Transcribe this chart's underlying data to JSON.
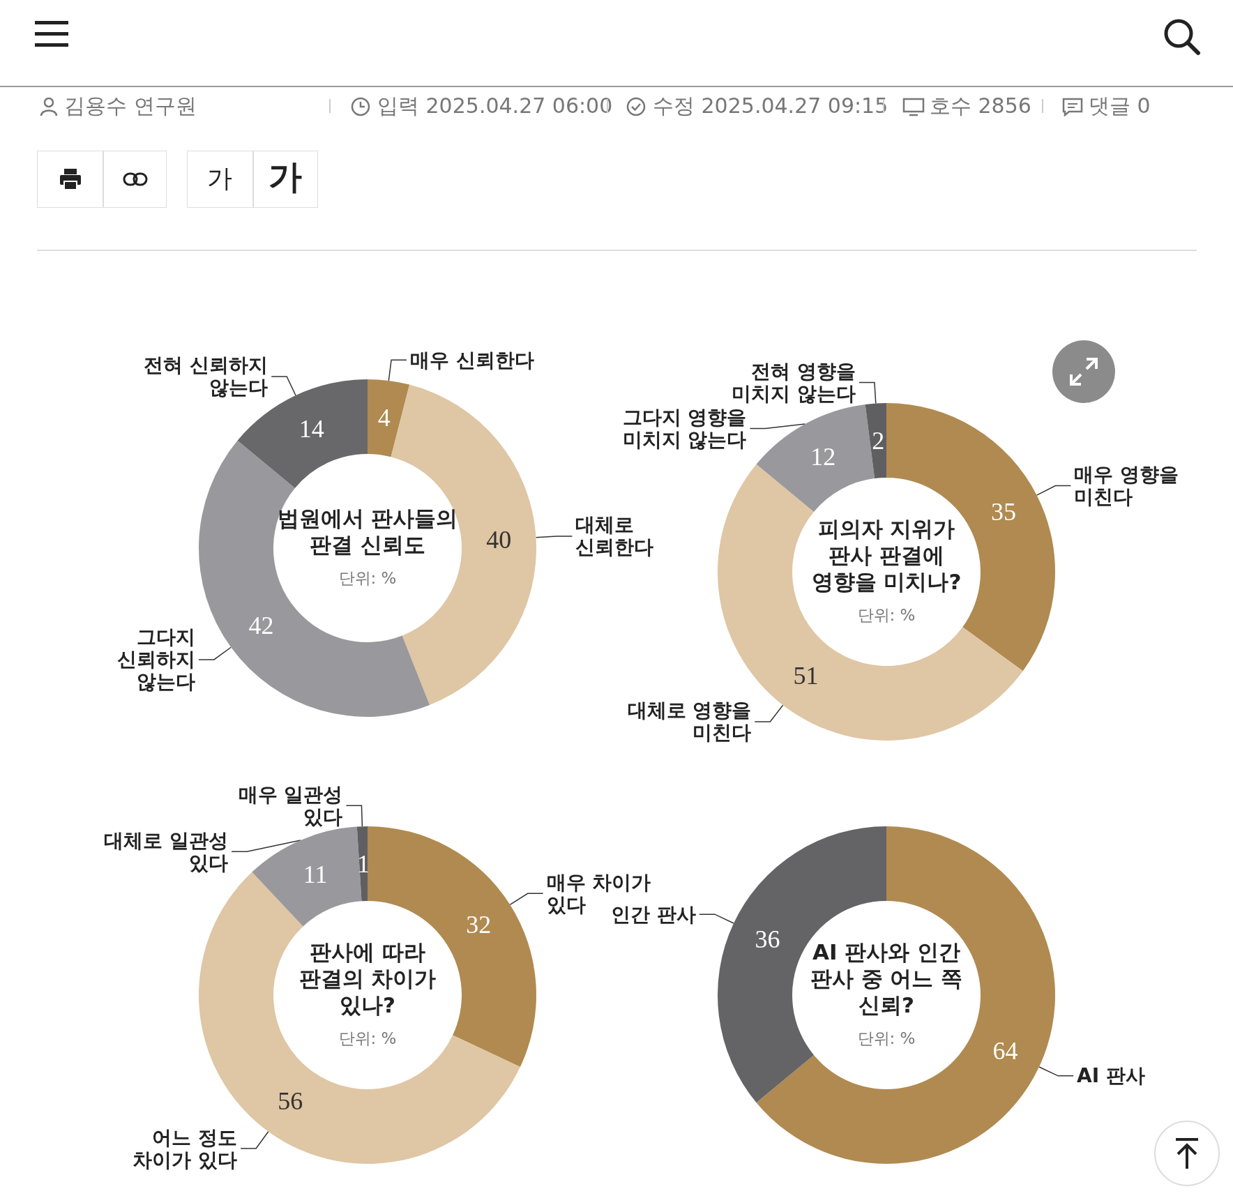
{
  "chart_data": [
    {
      "type": "other",
      "annotations": [
        "김용수 연구원",
        "입력 2025.04.27 06:00",
        "수정 2025.04.27 09:15",
        "호수 2856",
        "댓글 0",
        "가",
        "가"
      ]
    },
    {
      "type": "donut",
      "title": "법원에서 판사들의 판결 신뢰도",
      "subtitle": "단위: %",
      "data_labels": true,
      "categories": [
        "매우 신뢰한다",
        "대체로 신뢰한다",
        "그다지 신뢰하지 않는다",
        "전혀 신뢰하지 않는다"
      ],
      "values": [
        4,
        40,
        42,
        14
      ],
      "colors": [
        "#b08a50",
        "#dfc6a4",
        "#99989c",
        "#68686a"
      ]
    },
    {
      "type": "donut",
      "title": "피의자 지위가 판사 판결에 영향을 미치나?",
      "subtitle": "단위: %",
      "data_labels": true,
      "categories": [
        "매우 영향을 미친다",
        "대체로 영향을 미친다",
        "그다지 영향을 미치지 않는다",
        "전혀 영향을 미치지 않는다"
      ],
      "values": [
        35,
        51,
        12,
        2
      ],
      "colors": [
        "#b08a50",
        "#dfc6a4",
        "#99989c",
        "#5f5f61"
      ]
    },
    {
      "type": "donut",
      "title": "판사에 따라 판결의 차이가 있나?",
      "subtitle": "단위: %",
      "data_labels": true,
      "categories": [
        "매우 차이가 있다",
        "어느 정도 차이가 있다",
        "대체로 일관성 있다",
        "매우 일관성 있다"
      ],
      "values": [
        32,
        56,
        11,
        1
      ],
      "colors": [
        "#b08a50",
        "#dfc6a4",
        "#99989c",
        "#5f5f61"
      ]
    },
    {
      "type": "donut",
      "title": "AI 판사와 인간 판사 중 어느 쪽 신뢰?",
      "subtitle": "단위: %",
      "data_labels": true,
      "categories": [
        "AI 판사",
        "인간 판사"
      ],
      "values": [
        64,
        36
      ],
      "colors": [
        "#b08a50",
        "#646466"
      ]
    }
  ]
}
